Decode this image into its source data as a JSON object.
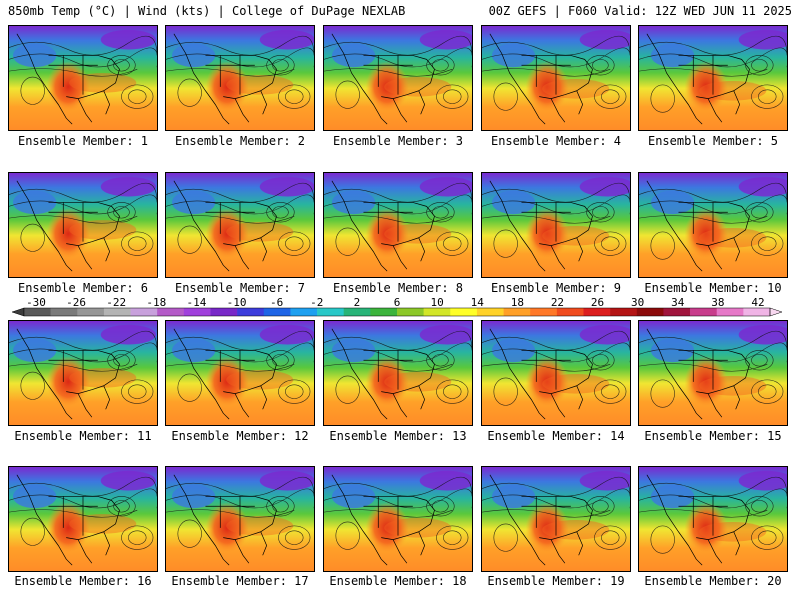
{
  "header": {
    "left": "850mb Temp (°C) | Wind (kts) | College of DuPage NEXLAB",
    "right": "00Z GEFS | F060 Valid: 12Z WED JUN 11 2025"
  },
  "panels": [
    {
      "caption": "Ensemble Member: 1"
    },
    {
      "caption": "Ensemble Member: 2"
    },
    {
      "caption": "Ensemble Member: 3"
    },
    {
      "caption": "Ensemble Member: 4"
    },
    {
      "caption": "Ensemble Member: 5"
    },
    {
      "caption": "Ensemble Member: 6"
    },
    {
      "caption": "Ensemble Member: 7"
    },
    {
      "caption": "Ensemble Member: 8"
    },
    {
      "caption": "Ensemble Member: 9"
    },
    {
      "caption": "Ensemble Member: 10"
    },
    {
      "caption": "Ensemble Member: 11"
    },
    {
      "caption": "Ensemble Member: 12"
    },
    {
      "caption": "Ensemble Member: 13"
    },
    {
      "caption": "Ensemble Member: 14"
    },
    {
      "caption": "Ensemble Member: 15"
    },
    {
      "caption": "Ensemble Member: 16"
    },
    {
      "caption": "Ensemble Member: 17"
    },
    {
      "caption": "Ensemble Member: 18"
    },
    {
      "caption": "Ensemble Member: 19"
    },
    {
      "caption": "Ensemble Member: 20"
    }
  ],
  "colorbar": {
    "tick_labels": [
      "-30",
      "-26",
      "-22",
      "-18",
      "-14",
      "-10",
      "-6",
      "-2",
      "2",
      "6",
      "10",
      "14",
      "18",
      "22",
      "26",
      "30",
      "34",
      "38",
      "42"
    ],
    "colors": [
      "#5a5a5a",
      "#7a7a7a",
      "#969696",
      "#b4b4b4",
      "#c8a0dc",
      "#b45ac8",
      "#a040dc",
      "#7828c8",
      "#3c3cdc",
      "#1e64e6",
      "#1ea0f0",
      "#28c8c8",
      "#28b478",
      "#3cb43c",
      "#8cc828",
      "#d2e628",
      "#ffff28",
      "#ffd228",
      "#ffa028",
      "#ff7828",
      "#f04b1e",
      "#dc1e1e",
      "#b41414",
      "#8c0a0a",
      "#a0143c",
      "#c83c8c",
      "#e678c8",
      "#f0b4e6"
    ]
  },
  "map_colors": {
    "cold": "#7a2ad0",
    "cool": "#3c78e0",
    "mild": "#28b4a0",
    "green": "#5ac83c",
    "yellow": "#f0e632",
    "orange": "#ffa028",
    "warm": "#f5641e",
    "hot": "#dc2814",
    "ocean_warm": "#ff8c28"
  }
}
